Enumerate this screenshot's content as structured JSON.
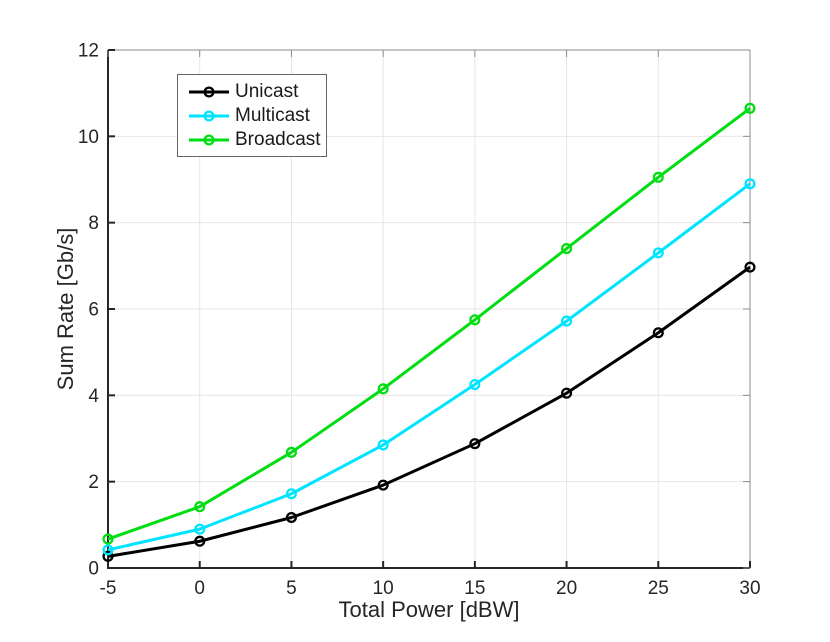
{
  "figure": {
    "background": "#ffffff",
    "axis_color": "#262626",
    "box_mirror_color": "#8c8c8c",
    "grid_color": "#e6e6e6",
    "legend_border_color": "#666666"
  },
  "chart_data": {
    "type": "line",
    "title": "",
    "xlabel": "Total Power [dBW]",
    "ylabel": "Sum Rate [Gb/s]",
    "xlim": [
      -5,
      30
    ],
    "ylim": [
      0,
      12
    ],
    "xticks": [
      -5,
      0,
      5,
      10,
      15,
      20,
      25,
      30
    ],
    "yticks": [
      0,
      2,
      4,
      6,
      8,
      10,
      12
    ],
    "grid": true,
    "legend_position": "upper-left-inside",
    "x": [
      -5,
      0,
      5,
      10,
      15,
      20,
      25,
      30
    ],
    "series": [
      {
        "name": "Unicast",
        "color": "#000000",
        "marker": "circle",
        "values": [
          0.27,
          0.62,
          1.17,
          1.92,
          2.88,
          4.05,
          5.45,
          6.97
        ]
      },
      {
        "name": "Multicast",
        "color": "#00e4ff",
        "marker": "circle",
        "values": [
          0.42,
          0.9,
          1.72,
          2.85,
          4.25,
          5.72,
          7.3,
          8.9
        ]
      },
      {
        "name": "Broadcast",
        "color": "#00dd11",
        "marker": "circle",
        "values": [
          0.67,
          1.42,
          2.68,
          4.15,
          5.75,
          7.4,
          9.05,
          10.65
        ]
      }
    ]
  }
}
